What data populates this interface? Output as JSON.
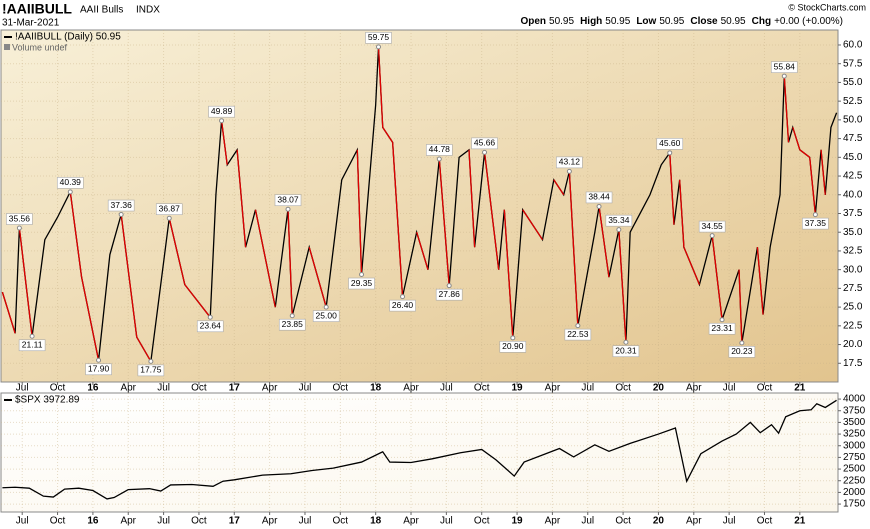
{
  "header": {
    "symbol": "!AAIIBULL",
    "name": "AAII Bulls",
    "exchange": "INDX",
    "date": "31-Mar-2021",
    "copyright": "© StockCharts.com",
    "quote": [
      {
        "label": "Open",
        "value": "50.95"
      },
      {
        "label": "High",
        "value": "50.95"
      },
      {
        "label": "Low",
        "value": "50.95"
      },
      {
        "label": "Close",
        "value": "50.95"
      },
      {
        "label": "Chg",
        "value": "+0.00 (+0.00%)"
      }
    ]
  },
  "chart_data": [
    {
      "type": "line",
      "legend_label": "!AAIIBULL (Daily) 50.95",
      "volume_note": "Volume undef",
      "background": [
        "#f8f0d8",
        "#e2c48e"
      ],
      "grid": true,
      "xlim": [
        2015.35,
        2021.27
      ],
      "ylim": [
        15,
        62
      ],
      "xticks": [
        {
          "value": 2015.5,
          "label": "Jul"
        },
        {
          "value": 2015.75,
          "label": "Oct"
        },
        {
          "value": 2016,
          "label": "16"
        },
        {
          "value": 2016.25,
          "label": "Apr"
        },
        {
          "value": 2016.5,
          "label": "Jul"
        },
        {
          "value": 2016.75,
          "label": "Oct"
        },
        {
          "value": 2017,
          "label": "17"
        },
        {
          "value": 2017.25,
          "label": "Apr"
        },
        {
          "value": 2017.5,
          "label": "Jul"
        },
        {
          "value": 2017.75,
          "label": "Oct"
        },
        {
          "value": 2018,
          "label": "18"
        },
        {
          "value": 2018.25,
          "label": "Apr"
        },
        {
          "value": 2018.5,
          "label": "Jul"
        },
        {
          "value": 2018.75,
          "label": "Oct"
        },
        {
          "value": 2019,
          "label": "19"
        },
        {
          "value": 2019.25,
          "label": "Apr"
        },
        {
          "value": 2019.5,
          "label": "Jul"
        },
        {
          "value": 2019.75,
          "label": "Oct"
        },
        {
          "value": 2020,
          "label": "20"
        },
        {
          "value": 2020.25,
          "label": "Apr"
        },
        {
          "value": 2020.5,
          "label": "Jul"
        },
        {
          "value": 2020.75,
          "label": "Oct"
        },
        {
          "value": 2021,
          "label": "21"
        }
      ],
      "yticks": [
        {
          "value": 17.5,
          "label": "17.5"
        },
        {
          "value": 20,
          "label": "20.0"
        },
        {
          "value": 22.5,
          "label": "22.5"
        },
        {
          "value": 25,
          "label": "25.0"
        },
        {
          "value": 27.5,
          "label": "27.5"
        },
        {
          "value": 30,
          "label": "30.0"
        },
        {
          "value": 32.5,
          "label": "32.5"
        },
        {
          "value": 35,
          "label": "35.0"
        },
        {
          "value": 37.5,
          "label": "37.5"
        },
        {
          "value": 40,
          "label": "40.0"
        },
        {
          "value": 42.5,
          "label": "42.5"
        },
        {
          "value": 45,
          "label": "45.0"
        },
        {
          "value": 47.5,
          "label": "47.5"
        },
        {
          "value": 50,
          "label": "50.0"
        },
        {
          "value": 52.5,
          "label": "52.5"
        },
        {
          "value": 55,
          "label": "55.0"
        },
        {
          "value": 57.5,
          "label": "57.5"
        },
        {
          "value": 60,
          "label": "60.0"
        }
      ],
      "x": [
        2015.36,
        2015.45,
        2015.48,
        2015.57,
        2015.66,
        2015.75,
        2015.84,
        2015.92,
        2016.04,
        2016.12,
        2016.2,
        2016.31,
        2016.41,
        2016.54,
        2016.65,
        2016.83,
        2016.87,
        2016.91,
        2016.95,
        2017.02,
        2017.08,
        2017.15,
        2017.29,
        2017.38,
        2017.41,
        2017.53,
        2017.65,
        2017.76,
        2017.87,
        2017.9,
        2018.0,
        2018.02,
        2018.05,
        2018.12,
        2018.19,
        2018.29,
        2018.37,
        2018.45,
        2018.52,
        2018.59,
        2018.66,
        2018.7,
        2018.77,
        2018.87,
        2018.91,
        2018.97,
        2019.04,
        2019.18,
        2019.26,
        2019.33,
        2019.37,
        2019.43,
        2019.55,
        2019.58,
        2019.65,
        2019.72,
        2019.77,
        2019.8,
        2019.94,
        2020.02,
        2020.08,
        2020.11,
        2020.15,
        2020.18,
        2020.29,
        2020.38,
        2020.45,
        2020.57,
        2020.59,
        2020.7,
        2020.74,
        2020.79,
        2020.86,
        2020.89,
        2020.92,
        2020.95,
        2021.0,
        2021.07,
        2021.11,
        2021.15,
        2021.18,
        2021.22,
        2021.26
      ],
      "series": [
        {
          "name": "!AAIIBULL",
          "color": "#000000",
          "down_color": "#e00000",
          "values": [
            27,
            21.5,
            35.56,
            21.11,
            34,
            37,
            40.39,
            29,
            17.9,
            32,
            37.36,
            21,
            17.75,
            36.87,
            28,
            23.64,
            40,
            49.89,
            44,
            46,
            33,
            38,
            25,
            38.07,
            23.85,
            33,
            25,
            42,
            46,
            29.35,
            52,
            59.75,
            49,
            47,
            26.4,
            35,
            30,
            44.78,
            27.86,
            45,
            46,
            33,
            45.66,
            30,
            38,
            20.9,
            38,
            34,
            42,
            40,
            43.12,
            22.53,
            35,
            38.44,
            29,
            35.34,
            20.31,
            35,
            40,
            44,
            45.6,
            36,
            42,
            33,
            28,
            34.55,
            23.31,
            30,
            20.23,
            33,
            24,
            33,
            40,
            55.84,
            47,
            49,
            46,
            45,
            37.35,
            46,
            40,
            49,
            50.95
          ],
          "value_labels": [
            null,
            null,
            "35.56",
            "21.11",
            null,
            null,
            "40.39",
            null,
            "17.90",
            null,
            "37.36",
            null,
            "17.75",
            "36.87",
            null,
            "23.64",
            null,
            "49.89",
            null,
            null,
            null,
            null,
            null,
            "38.07",
            "23.85",
            null,
            "25.00",
            null,
            null,
            "29.35",
            null,
            "59.75",
            null,
            null,
            "26.40",
            null,
            null,
            "44.78",
            "27.86",
            null,
            null,
            null,
            "45.66",
            null,
            null,
            "20.90",
            null,
            null,
            null,
            null,
            "43.12",
            "22.53",
            null,
            "38.44",
            null,
            "35.34",
            "20.31",
            null,
            null,
            null,
            "45.60",
            null,
            null,
            null,
            null,
            "34.55",
            "23.31",
            null,
            "20.23",
            null,
            null,
            null,
            null,
            "55.84",
            null,
            null,
            null,
            null,
            "37.35",
            null,
            null,
            null,
            null
          ]
        }
      ]
    },
    {
      "type": "line",
      "legend_label": "$SPX 3972.89",
      "background": [
        "#ffffff",
        "#fbf6ea"
      ],
      "grid": true,
      "xlim": [
        2015.35,
        2021.27
      ],
      "ylim": [
        1580,
        4130
      ],
      "xticks": [
        {
          "value": 2015.5,
          "label": "Jul"
        },
        {
          "value": 2015.75,
          "label": "Oct"
        },
        {
          "value": 2016,
          "label": "16"
        },
        {
          "value": 2016.25,
          "label": "Apr"
        },
        {
          "value": 2016.5,
          "label": "Jul"
        },
        {
          "value": 2016.75,
          "label": "Oct"
        },
        {
          "value": 2017,
          "label": "17"
        },
        {
          "value": 2017.25,
          "label": "Apr"
        },
        {
          "value": 2017.5,
          "label": "Jul"
        },
        {
          "value": 2017.75,
          "label": "Oct"
        },
        {
          "value": 2018,
          "label": "18"
        },
        {
          "value": 2018.25,
          "label": "Apr"
        },
        {
          "value": 2018.5,
          "label": "Jul"
        },
        {
          "value": 2018.75,
          "label": "Oct"
        },
        {
          "value": 2019,
          "label": "19"
        },
        {
          "value": 2019.25,
          "label": "Apr"
        },
        {
          "value": 2019.5,
          "label": "Jul"
        },
        {
          "value": 2019.75,
          "label": "Oct"
        },
        {
          "value": 2020,
          "label": "20"
        },
        {
          "value": 2020.25,
          "label": "Apr"
        },
        {
          "value": 2020.5,
          "label": "Jul"
        },
        {
          "value": 2020.75,
          "label": "Oct"
        },
        {
          "value": 2021,
          "label": "21"
        }
      ],
      "yticks": [
        1750,
        2000,
        2250,
        2500,
        2750,
        3000,
        3250,
        3500,
        3750,
        4000
      ],
      "x": [
        2015.36,
        2015.45,
        2015.55,
        2015.65,
        2015.72,
        2015.8,
        2015.9,
        2016.0,
        2016.1,
        2016.15,
        2016.25,
        2016.4,
        2016.48,
        2016.55,
        2016.7,
        2016.85,
        2016.92,
        2017.0,
        2017.2,
        2017.4,
        2017.55,
        2017.7,
        2017.9,
        2018.05,
        2018.1,
        2018.25,
        2018.4,
        2018.6,
        2018.75,
        2018.85,
        2018.98,
        2019.05,
        2019.3,
        2019.4,
        2019.55,
        2019.65,
        2019.8,
        2020.0,
        2020.12,
        2020.2,
        2020.3,
        2020.45,
        2020.55,
        2020.65,
        2020.72,
        2020.8,
        2020.85,
        2020.9,
        2021.0,
        2021.08,
        2021.12,
        2021.18,
        2021.26
      ],
      "series": [
        {
          "name": "$SPX",
          "color": "#000000",
          "values": [
            2100,
            2110,
            2090,
            1920,
            1900,
            2070,
            2090,
            2040,
            1860,
            1890,
            2060,
            2080,
            2030,
            2160,
            2170,
            2130,
            2240,
            2270,
            2370,
            2400,
            2470,
            2520,
            2650,
            2870,
            2650,
            2640,
            2720,
            2850,
            2920,
            2700,
            2350,
            2650,
            2940,
            2760,
            3020,
            2880,
            3050,
            3250,
            3380,
            2240,
            2830,
            3100,
            3250,
            3500,
            3280,
            3450,
            3270,
            3620,
            3750,
            3770,
            3900,
            3820,
            3972.89
          ]
        }
      ]
    }
  ]
}
